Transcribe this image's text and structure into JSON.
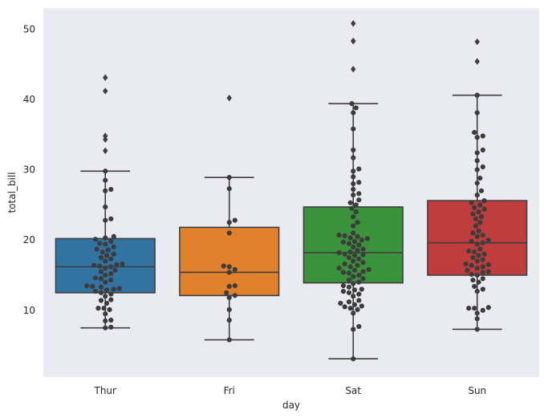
{
  "chart_data": {
    "type": "box",
    "overlay": "swarm",
    "xlabel": "day",
    "ylabel": "total_bill",
    "ylim": [
      0.5,
      53
    ],
    "yticks": [
      10,
      20,
      30,
      40,
      50
    ],
    "grid": false,
    "background": "#eaeaf2",
    "categories": [
      "Thur",
      "Fri",
      "Sat",
      "Sun"
    ],
    "colors": [
      "#3274a1",
      "#e1812c",
      "#3a923a",
      "#c03d3e"
    ],
    "point_color": "#3c3c3c",
    "boxes": [
      {
        "whisker_low": 7.5,
        "q1": 12.5,
        "median": 16.2,
        "q3": 20.2,
        "whisker_high": 29.8,
        "outliers": [
          32.7,
          34.3,
          34.8,
          41.2,
          43.1
        ]
      },
      {
        "whisker_low": 5.8,
        "q1": 12.1,
        "median": 15.4,
        "q3": 21.8,
        "whisker_high": 28.9,
        "outliers": [
          40.2
        ]
      },
      {
        "whisker_low": 3.1,
        "q1": 13.9,
        "median": 18.2,
        "q3": 24.7,
        "whisker_high": 39.4,
        "outliers": [
          44.3,
          48.3,
          48.3,
          50.8
        ]
      },
      {
        "whisker_low": 7.3,
        "q1": 15.0,
        "median": 19.6,
        "q3": 25.6,
        "whisker_high": 40.6,
        "outliers": [
          45.4,
          48.2
        ]
      }
    ],
    "points": [
      [
        7.5,
        7.6,
        8.5,
        8.6,
        9.5,
        10.1,
        10.3,
        10.3,
        11.0,
        11.4,
        11.5,
        12.0,
        12.3,
        12.5,
        12.7,
        12.9,
        13.0,
        13.1,
        13.3,
        13.4,
        13.5,
        14.0,
        14.3,
        14.5,
        14.6,
        15.0,
        15.2,
        15.5,
        15.7,
        16.0,
        16.2,
        16.3,
        16.4,
        16.5,
        16.6,
        17.0,
        17.3,
        17.5,
        17.8,
        18.0,
        18.3,
        18.6,
        18.7,
        19.0,
        19.4,
        19.5,
        19.8,
        20.1,
        20.3,
        20.5,
        22.8,
        23.0,
        24.7,
        27.0,
        27.2,
        28.5,
        29.8
      ],
      [
        5.8,
        8.6,
        10.1,
        11.8,
        12.1,
        12.5,
        13.4,
        13.5,
        15.4,
        15.8,
        16.2,
        16.3,
        21.0,
        22.5,
        22.8,
        27.3,
        28.9
      ],
      [
        3.1,
        7.3,
        7.7,
        9.6,
        10.1,
        10.3,
        10.5,
        10.6,
        10.8,
        11.0,
        11.2,
        11.4,
        12.0,
        12.3,
        12.5,
        12.7,
        12.9,
        13.0,
        13.3,
        13.5,
        13.8,
        14.0,
        14.3,
        14.5,
        14.8,
        15.0,
        15.3,
        15.4,
        15.5,
        15.7,
        15.8,
        16.0,
        16.2,
        16.4,
        16.6,
        16.8,
        17.0,
        17.3,
        17.5,
        17.8,
        17.9,
        18.0,
        18.2,
        18.3,
        18.5,
        18.7,
        19.0,
        19.3,
        19.5,
        19.7,
        19.8,
        20.0,
        20.2,
        20.3,
        20.5,
        20.6,
        20.7,
        21.0,
        22.0,
        22.5,
        23.3,
        24.0,
        24.5,
        25.0,
        25.3,
        25.7,
        26.4,
        26.6,
        27.2,
        28.0,
        28.2,
        29.0,
        29.8,
        30.1,
        31.7,
        32.8,
        35.8,
        38.1,
        38.8,
        39.4
      ],
      [
        7.3,
        8.8,
        9.6,
        10.0,
        10.3,
        10.3,
        10.4,
        12.7,
        13.0,
        13.4,
        14.0,
        14.3,
        14.5,
        15.0,
        15.1,
        15.4,
        15.5,
        15.7,
        16.0,
        16.2,
        16.4,
        16.5,
        16.6,
        17.0,
        17.2,
        17.5,
        17.8,
        18.0,
        18.3,
        18.4,
        18.7,
        19.4,
        19.6,
        19.8,
        20.0,
        20.5,
        20.7,
        21.0,
        21.3,
        22.0,
        22.5,
        23.0,
        23.3,
        23.7,
        24.0,
        24.4,
        24.6,
        25.0,
        25.3,
        25.6,
        26.4,
        27.0,
        28.1,
        28.8,
        30.0,
        30.4,
        31.3,
        32.4,
        32.8,
        34.6,
        34.8,
        35.3,
        38.1,
        40.6
      ]
    ]
  }
}
